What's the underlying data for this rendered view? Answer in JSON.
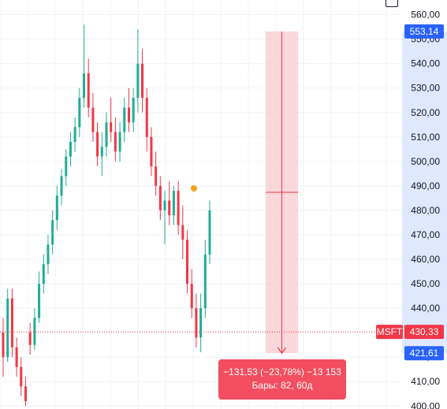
{
  "chart_data": {
    "type": "candlestick",
    "symbol": "MSFT",
    "price_axis": {
      "ticks": [
        "400,00",
        "410,00",
        "420,00",
        "430,00",
        "440,00",
        "450,00",
        "460,00",
        "470,00",
        "480,00",
        "490,00",
        "500,00",
        "510,00",
        "520,00",
        "530,00",
        "540,00",
        "550,00",
        "560,00"
      ],
      "tick_values": [
        400,
        410,
        420,
        430,
        440,
        450,
        460,
        470,
        480,
        490,
        500,
        510,
        520,
        530,
        540,
        550,
        560
      ],
      "range": [
        398.8,
        566.0
      ]
    },
    "current_price": 430.33,
    "current_price_label": "430,33",
    "measure": {
      "top_price": 553.14,
      "top_label": "553,14",
      "bottom_price": 421.61,
      "bottom_label": "421,61",
      "change_text": "−131,53 (−23,78%) −13 153",
      "bars_text": "Бары: 82, 60д"
    },
    "candles_ohlc": [
      [
        430,
        436,
        412,
        420
      ],
      [
        420,
        448,
        418,
        444
      ],
      [
        444,
        448,
        420,
        424
      ],
      [
        424,
        428,
        412,
        416
      ],
      [
        416,
        420,
        404,
        408
      ],
      [
        408,
        412,
        400,
        402
      ],
      [
        430,
        434,
        421,
        425
      ],
      [
        425,
        440,
        423,
        436
      ],
      [
        436,
        455,
        434,
        450
      ],
      [
        450,
        462,
        446,
        458
      ],
      [
        458,
        470,
        454,
        466
      ],
      [
        466,
        480,
        462,
        476
      ],
      [
        476,
        490,
        472,
        486
      ],
      [
        486,
        497,
        482,
        494
      ],
      [
        494,
        505,
        490,
        502
      ],
      [
        502,
        512,
        498,
        508
      ],
      [
        508,
        518,
        504,
        514
      ],
      [
        514,
        530,
        510,
        526
      ],
      [
        526,
        556,
        522,
        536
      ],
      [
        536,
        542,
        518,
        522
      ],
      [
        522,
        528,
        508,
        512
      ],
      [
        512,
        516,
        498,
        502
      ],
      [
        502,
        512,
        494,
        506
      ],
      [
        506,
        520,
        502,
        516
      ],
      [
        516,
        526,
        508,
        512
      ],
      [
        512,
        518,
        500,
        504
      ],
      [
        504,
        516,
        500,
        512
      ],
      [
        512,
        526,
        508,
        522
      ],
      [
        522,
        530,
        512,
        516
      ],
      [
        516,
        530,
        512,
        526
      ],
      [
        526,
        554,
        520,
        540
      ],
      [
        540,
        546,
        520,
        526
      ],
      [
        526,
        530,
        504,
        510
      ],
      [
        510,
        514,
        494,
        498
      ],
      [
        498,
        504,
        486,
        490
      ],
      [
        490,
        494,
        476,
        480
      ],
      [
        480,
        488,
        466,
        484
      ],
      [
        484,
        492,
        474,
        478
      ],
      [
        478,
        490,
        474,
        488
      ],
      [
        488,
        492,
        470,
        474
      ],
      [
        474,
        482,
        460,
        468
      ],
      [
        468,
        472,
        446,
        450
      ],
      [
        450,
        456,
        436,
        440
      ],
      [
        440,
        446,
        424,
        428
      ],
      [
        428,
        446,
        422,
        440
      ],
      [
        440,
        468,
        436,
        462
      ],
      [
        462,
        484,
        458,
        480
      ]
    ],
    "marker": {
      "price": 489.0,
      "color": "#f7a21b"
    },
    "colors": {
      "up": "#22ab94",
      "down": "#f23645",
      "measure_fill": "#f7c9cf",
      "measure_line": "#f23645",
      "price_line": "#f23645",
      "axis_highlight": "#2962ff"
    }
  }
}
